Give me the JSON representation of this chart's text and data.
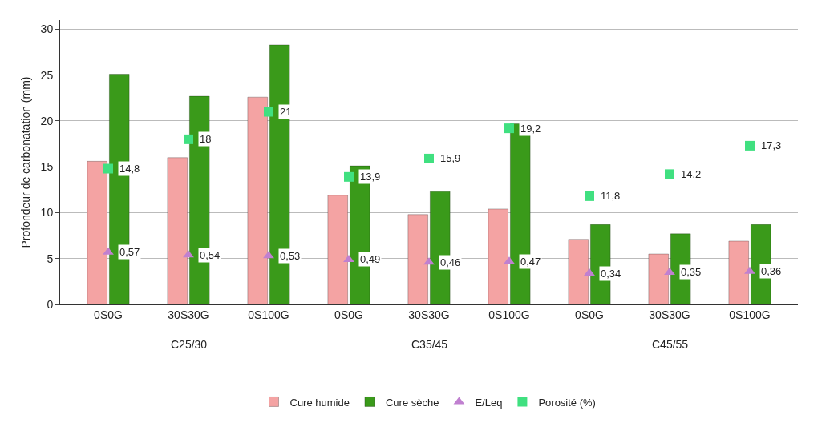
{
  "chart_data": {
    "type": "bar",
    "ylabel": "Profondeur de carbonatation (mm)",
    "categories": [
      "0S0G",
      "30S30G",
      "0S100G",
      "0S0G",
      "30S30G",
      "0S100G",
      "0S0G",
      "30S30G",
      "0S100G"
    ],
    "series": [
      {
        "name": "Cure humide",
        "color": "#f4a3a3",
        "values": [
          15.6,
          16.0,
          22.6,
          11.9,
          9.8,
          10.4,
          7.1,
          5.5,
          6.9
        ]
      },
      {
        "name": "Cure sèche",
        "color": "#3a9a1a",
        "values": [
          25.1,
          22.7,
          28.3,
          15.1,
          12.3,
          19.7,
          8.7,
          7.7,
          8.7
        ]
      },
      {
        "name": "E/Leq",
        "type": "scatter",
        "marker": "triangle",
        "axis": "y2",
        "color": "#c080d0",
        "values": [
          0.57,
          0.54,
          0.53,
          0.49,
          0.46,
          0.47,
          0.34,
          0.35,
          0.36
        ],
        "value_labels": [
          "0,57",
          "0,54",
          "0,53",
          "0,49",
          "0,46",
          "0,47",
          "0,34",
          "0,35",
          "0,36"
        ]
      },
      {
        "name": "Porosité (%)",
        "type": "scatter",
        "marker": "square",
        "color": "#40e080",
        "values": [
          14.8,
          18,
          21,
          13.9,
          15.9,
          19.2,
          11.8,
          14.2,
          17.3
        ],
        "value_labels": [
          "14,8",
          "18",
          "21",
          "13,9",
          "15,9",
          "19,2",
          "11,8",
          "14,2",
          "17,3"
        ]
      }
    ],
    "annotations": [
      "C25/30",
      "C35/45",
      "C45/55"
    ],
    "ylim": [
      0,
      31
    ],
    "yticks": [
      0,
      5,
      10,
      15,
      20,
      25,
      30
    ],
    "y2lim": [
      0,
      3.1
    ],
    "grid": "y",
    "legend": "bottom"
  }
}
